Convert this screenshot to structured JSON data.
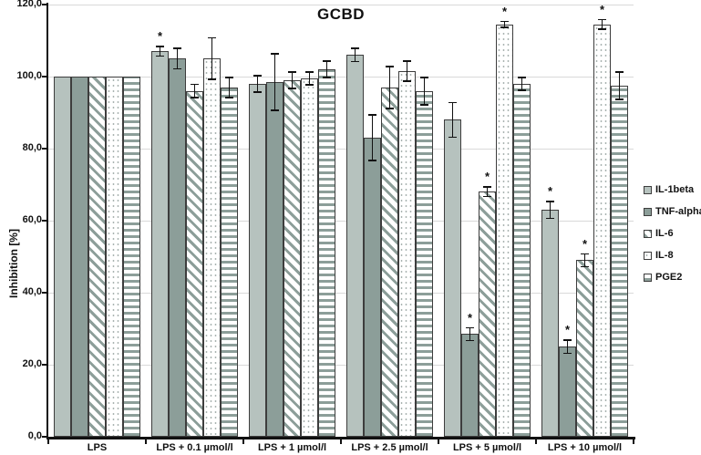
{
  "colors": {
    "bar_light": "#b6c2be",
    "bar_dark": "#8c9e99",
    "pattern_stroke": "#8c9e99",
    "bar_border": "#3d3d3d",
    "gridline": "#d9d9d9",
    "axis": "#111111",
    "background": "#ffffff"
  },
  "chart_data": {
    "type": "bar",
    "title": "GCBD",
    "xlabel": "",
    "ylabel": "Inhibition [%]",
    "ylim": [
      0,
      120
    ],
    "ytick_step": 20,
    "ytick_labels": [
      "0,0",
      "20,0",
      "40,0",
      "60,0",
      "80,0",
      "100,0",
      "120,0"
    ],
    "grid": true,
    "legend_position": "right",
    "significance_marker": "*",
    "categories": [
      "LPS",
      "LPS + 0.1 µmol/l",
      "LPS + 1 µmol/l",
      "LPS + 2.5 µmol/l",
      "LPS + 5 µmol/l",
      "LPS + 10 µmol/l"
    ],
    "series": [
      {
        "name": "IL-1beta",
        "pattern": "solid-light",
        "values": [
          100,
          107,
          98,
          106,
          88,
          63
        ],
        "errors": [
          0,
          1.5,
          2.5,
          2,
          5,
          2.5
        ],
        "sig": [
          false,
          true,
          false,
          false,
          false,
          true
        ]
      },
      {
        "name": "TNF-alpha",
        "pattern": "solid-dark",
        "values": [
          100,
          105,
          98.5,
          83,
          28.5,
          25
        ],
        "errors": [
          0,
          3,
          8,
          6.5,
          2,
          2
        ],
        "sig": [
          false,
          false,
          false,
          false,
          true,
          true
        ]
      },
      {
        "name": "IL-6",
        "pattern": "diagonal-hatch",
        "values": [
          100,
          96,
          99,
          97,
          68,
          49
        ],
        "errors": [
          0,
          2,
          2.5,
          6,
          1.5,
          2
        ],
        "sig": [
          false,
          false,
          false,
          false,
          true,
          true
        ]
      },
      {
        "name": "IL-8",
        "pattern": "dots",
        "values": [
          100,
          105,
          99.5,
          101.5,
          114.5,
          114.5
        ],
        "errors": [
          0,
          6,
          2,
          3,
          1,
          1.5
        ],
        "sig": [
          false,
          false,
          false,
          false,
          true,
          true
        ]
      },
      {
        "name": "PGE2",
        "pattern": "horizontal-stripes",
        "values": [
          100,
          97,
          102,
          96,
          98,
          97.5
        ],
        "errors": [
          0,
          3,
          2.5,
          4,
          2,
          4
        ],
        "sig": [
          false,
          false,
          false,
          false,
          false,
          false
        ]
      }
    ]
  }
}
